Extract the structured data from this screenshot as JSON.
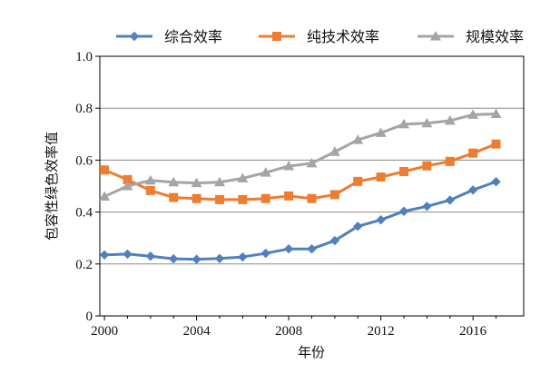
{
  "chart_data": {
    "type": "line",
    "title": "",
    "xlabel": "年份",
    "ylabel": "包容性绿色效率值",
    "x": [
      2000,
      2001,
      2002,
      2003,
      2004,
      2005,
      2006,
      2007,
      2008,
      2009,
      2010,
      2011,
      2012,
      2013,
      2014,
      2015,
      2016,
      2017
    ],
    "xticks": [
      2000,
      2004,
      2008,
      2012,
      2016
    ],
    "xlim": [
      1999.8,
      2018.2
    ],
    "ylim": [
      0,
      1.0
    ],
    "yticks": [
      "0",
      "0.2",
      "0.4",
      "0.6",
      "0.8",
      "1.0"
    ],
    "ytick_values": [
      0,
      0.2,
      0.4,
      0.6,
      0.8,
      1.0
    ],
    "grid": true,
    "legend_position": "top",
    "series": [
      {
        "name": "综合效率",
        "color": "#4f81bd",
        "marker": "diamond",
        "values": [
          0.235,
          0.238,
          0.23,
          0.22,
          0.218,
          0.221,
          0.227,
          0.241,
          0.258,
          0.258,
          0.29,
          0.345,
          0.37,
          0.403,
          0.422,
          0.446,
          0.485,
          0.517
        ]
      },
      {
        "name": "纯技术效率",
        "color": "#ed7d31",
        "marker": "square",
        "values": [
          0.562,
          0.525,
          0.483,
          0.456,
          0.452,
          0.448,
          0.448,
          0.452,
          0.462,
          0.452,
          0.467,
          0.518,
          0.535,
          0.556,
          0.578,
          0.595,
          0.627,
          0.662
        ]
      },
      {
        "name": "规模效率",
        "color": "#a5a5a5",
        "marker": "triangle",
        "values": [
          0.46,
          0.5,
          0.522,
          0.515,
          0.512,
          0.515,
          0.53,
          0.552,
          0.577,
          0.588,
          0.632,
          0.678,
          0.705,
          0.738,
          0.742,
          0.752,
          0.775,
          0.778
        ]
      }
    ]
  }
}
